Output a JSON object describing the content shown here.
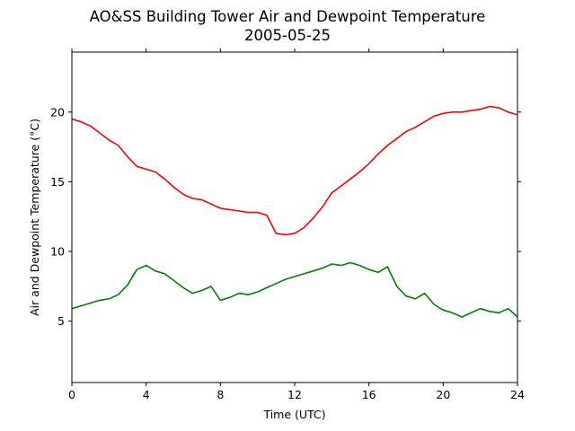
{
  "chart_data": {
    "type": "line",
    "title": "AO&SS Building Tower Air and Dewpoint Temperature",
    "subtitle": "2005-05-25",
    "xlabel": "Time (UTC)",
    "ylabel": "Air and Dewpoint Temperature (°C)",
    "xlim": [
      0,
      24
    ],
    "ylim": [
      0.6,
      24.3
    ],
    "xticks": [
      0,
      4,
      8,
      12,
      16,
      20,
      24
    ],
    "yticks": [
      5,
      10,
      15,
      20
    ],
    "grid": false,
    "legend": "none",
    "series": [
      {
        "color": "#ff0000",
        "x": [
          0,
          0.5,
          1,
          1.5,
          2,
          2.5,
          3,
          3.5,
          4,
          4.5,
          5,
          5.5,
          6,
          6.5,
          7,
          7.5,
          8,
          8.5,
          9,
          9.5,
          10,
          10.5,
          11,
          11.5,
          12,
          12.5,
          13,
          13.5,
          14,
          14.5,
          15,
          15.5,
          16,
          16.5,
          17,
          17.5,
          18,
          18.5,
          19,
          19.5,
          20,
          20.5,
          21,
          21.5,
          22,
          22.5,
          23,
          23.5,
          24
        ],
        "y": [
          19.5,
          19.3,
          19.0,
          18.5,
          18.0,
          17.6,
          16.8,
          16.1,
          15.9,
          15.7,
          15.2,
          14.6,
          14.1,
          13.8,
          13.7,
          13.4,
          13.1,
          13.0,
          12.9,
          12.8,
          12.8,
          12.6,
          11.3,
          11.2,
          11.3,
          11.7,
          12.4,
          13.2,
          14.2,
          14.7,
          15.2,
          15.7,
          16.3,
          17.0,
          17.6,
          18.1,
          18.6,
          18.9,
          19.3,
          19.7,
          19.9,
          20.0,
          20.0,
          20.1,
          20.2,
          20.4,
          20.3,
          20.0,
          19.8
        ]
      },
      {
        "color": "#008000",
        "x": [
          0,
          0.5,
          1,
          1.5,
          2,
          2.5,
          3,
          3.5,
          4,
          4.5,
          5,
          5.5,
          6,
          6.5,
          7,
          7.5,
          8,
          8.5,
          9,
          9.5,
          10,
          10.5,
          11,
          11.5,
          12,
          12.5,
          13,
          13.5,
          14,
          14.5,
          15,
          15.5,
          16,
          16.5,
          17,
          17.5,
          18,
          18.5,
          19,
          19.5,
          20,
          20.5,
          21,
          21.5,
          22,
          22.5,
          23,
          23.5,
          24
        ],
        "y": [
          5.9,
          6.1,
          6.3,
          6.5,
          6.6,
          6.9,
          7.6,
          8.7,
          9.0,
          8.6,
          8.4,
          7.9,
          7.4,
          7.0,
          7.2,
          7.5,
          6.5,
          6.7,
          7.0,
          6.9,
          7.1,
          7.4,
          7.7,
          8.0,
          8.2,
          8.4,
          8.6,
          8.8,
          9.1,
          9.0,
          9.2,
          9.0,
          8.7,
          8.5,
          8.9,
          7.5,
          6.8,
          6.6,
          7.0,
          6.2,
          5.8,
          5.6,
          5.3,
          5.6,
          5.9,
          5.7,
          5.6,
          5.9,
          5.3
        ]
      }
    ]
  }
}
